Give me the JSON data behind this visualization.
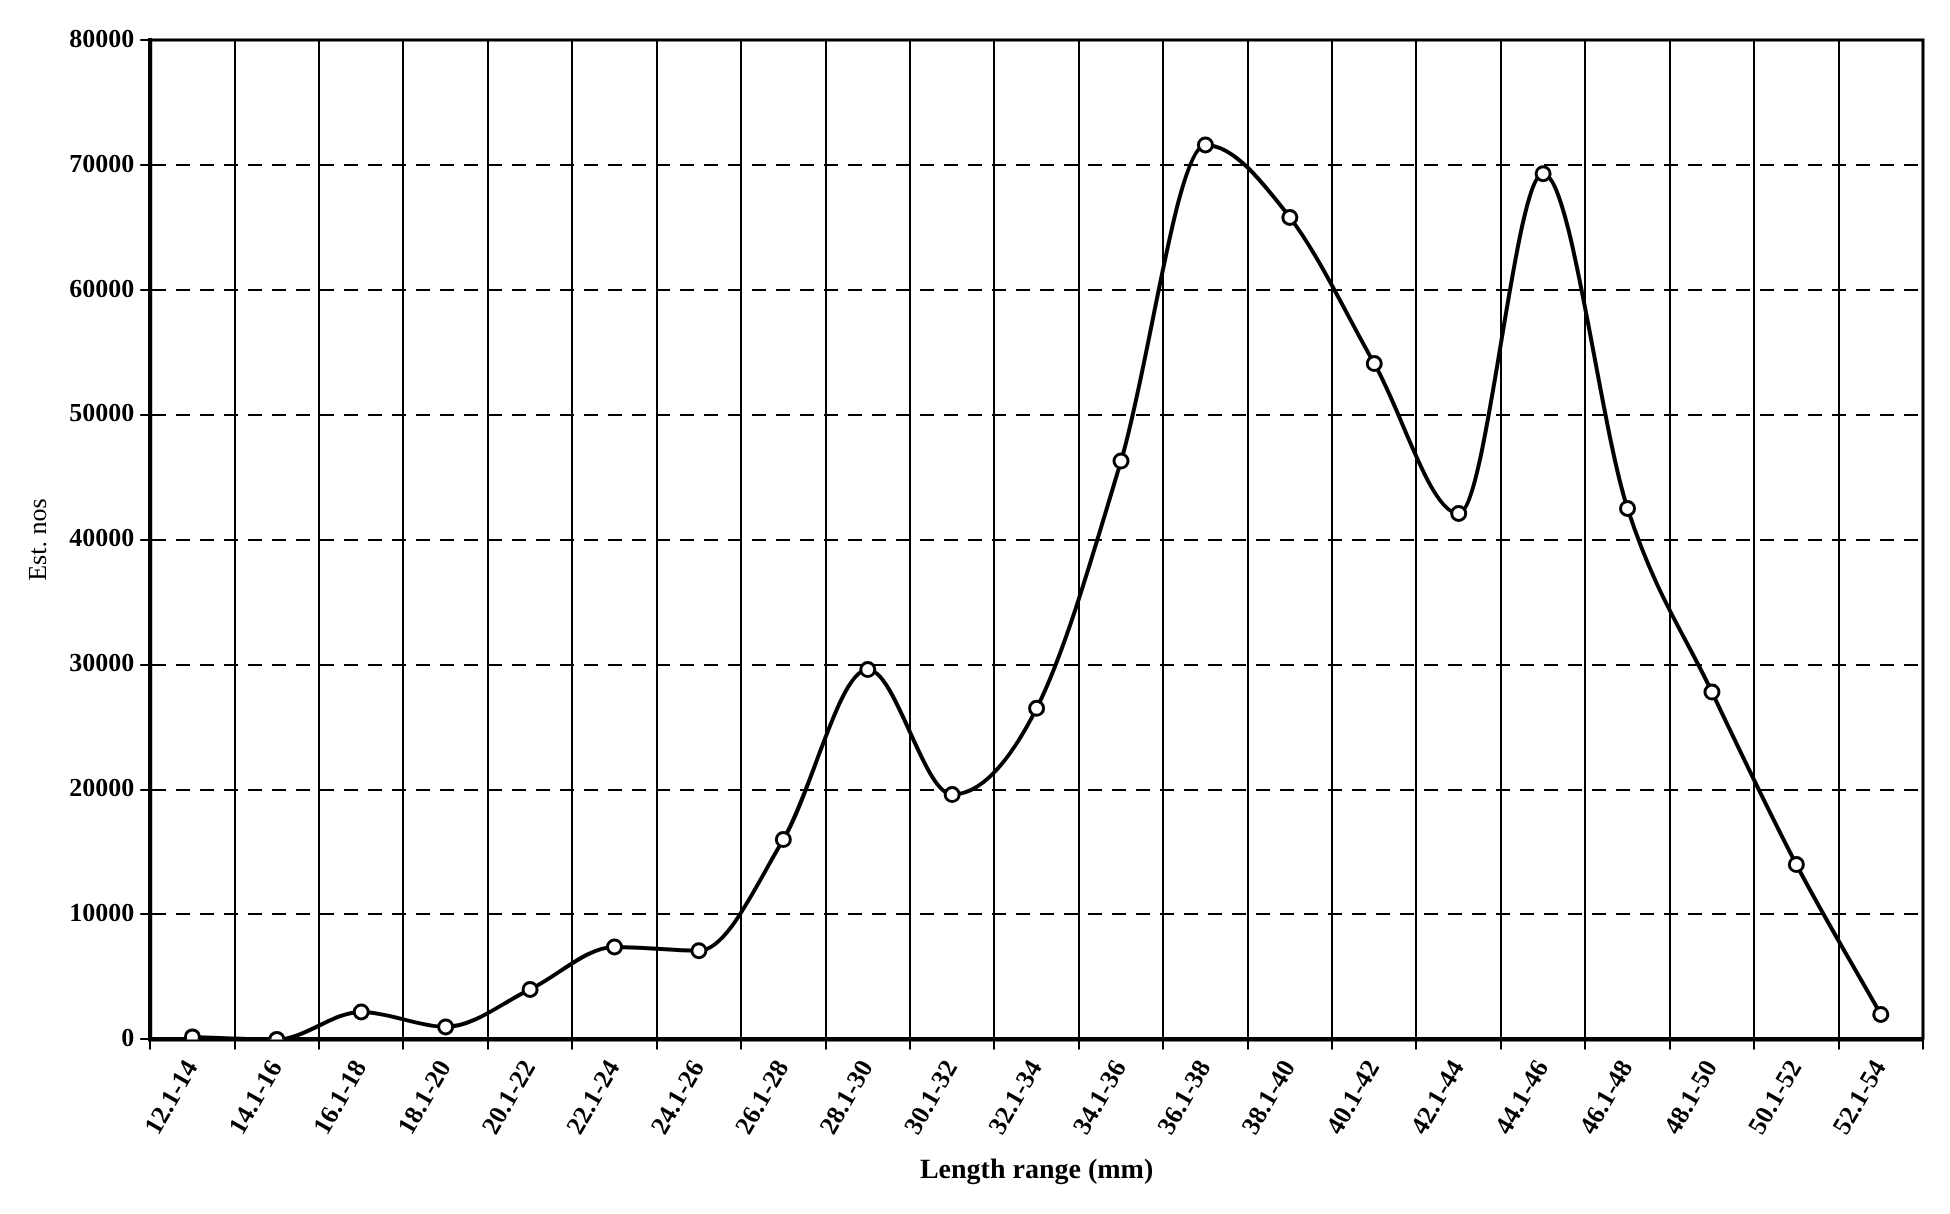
{
  "chart_data": {
    "type": "line",
    "xlabel": "Length range (mm)",
    "ylabel": "Est. nos",
    "categories": [
      "12.1-14",
      "14.1-16",
      "16.1-18",
      "18.1-20",
      "20.1-22",
      "22.1-24",
      "24.1-26",
      "26.1-28",
      "28.1-30",
      "30.1-32",
      "32.1-34",
      "34.1-36",
      "36.1-38",
      "38.1-40",
      "40.1-42",
      "42.1-44",
      "44.1-46",
      "46.1-48",
      "48.1-50",
      "50.1-52",
      "52.1-54"
    ],
    "series": [
      {
        "color": "#000000",
        "values": [
          200,
          0,
          2200,
          1000,
          4000,
          7400,
          7100,
          16000,
          29600,
          19600,
          26500,
          46300,
          71600,
          65800,
          54100,
          42100,
          69300,
          42500,
          27800,
          14000,
          2000
        ]
      }
    ],
    "ylim": [
      0,
      80000
    ],
    "yticks": [
      0,
      10000,
      20000,
      30000,
      40000,
      50000,
      60000,
      70000,
      80000
    ],
    "grid": true,
    "legend": false,
    "marker": "circle",
    "line_style": "solid"
  }
}
